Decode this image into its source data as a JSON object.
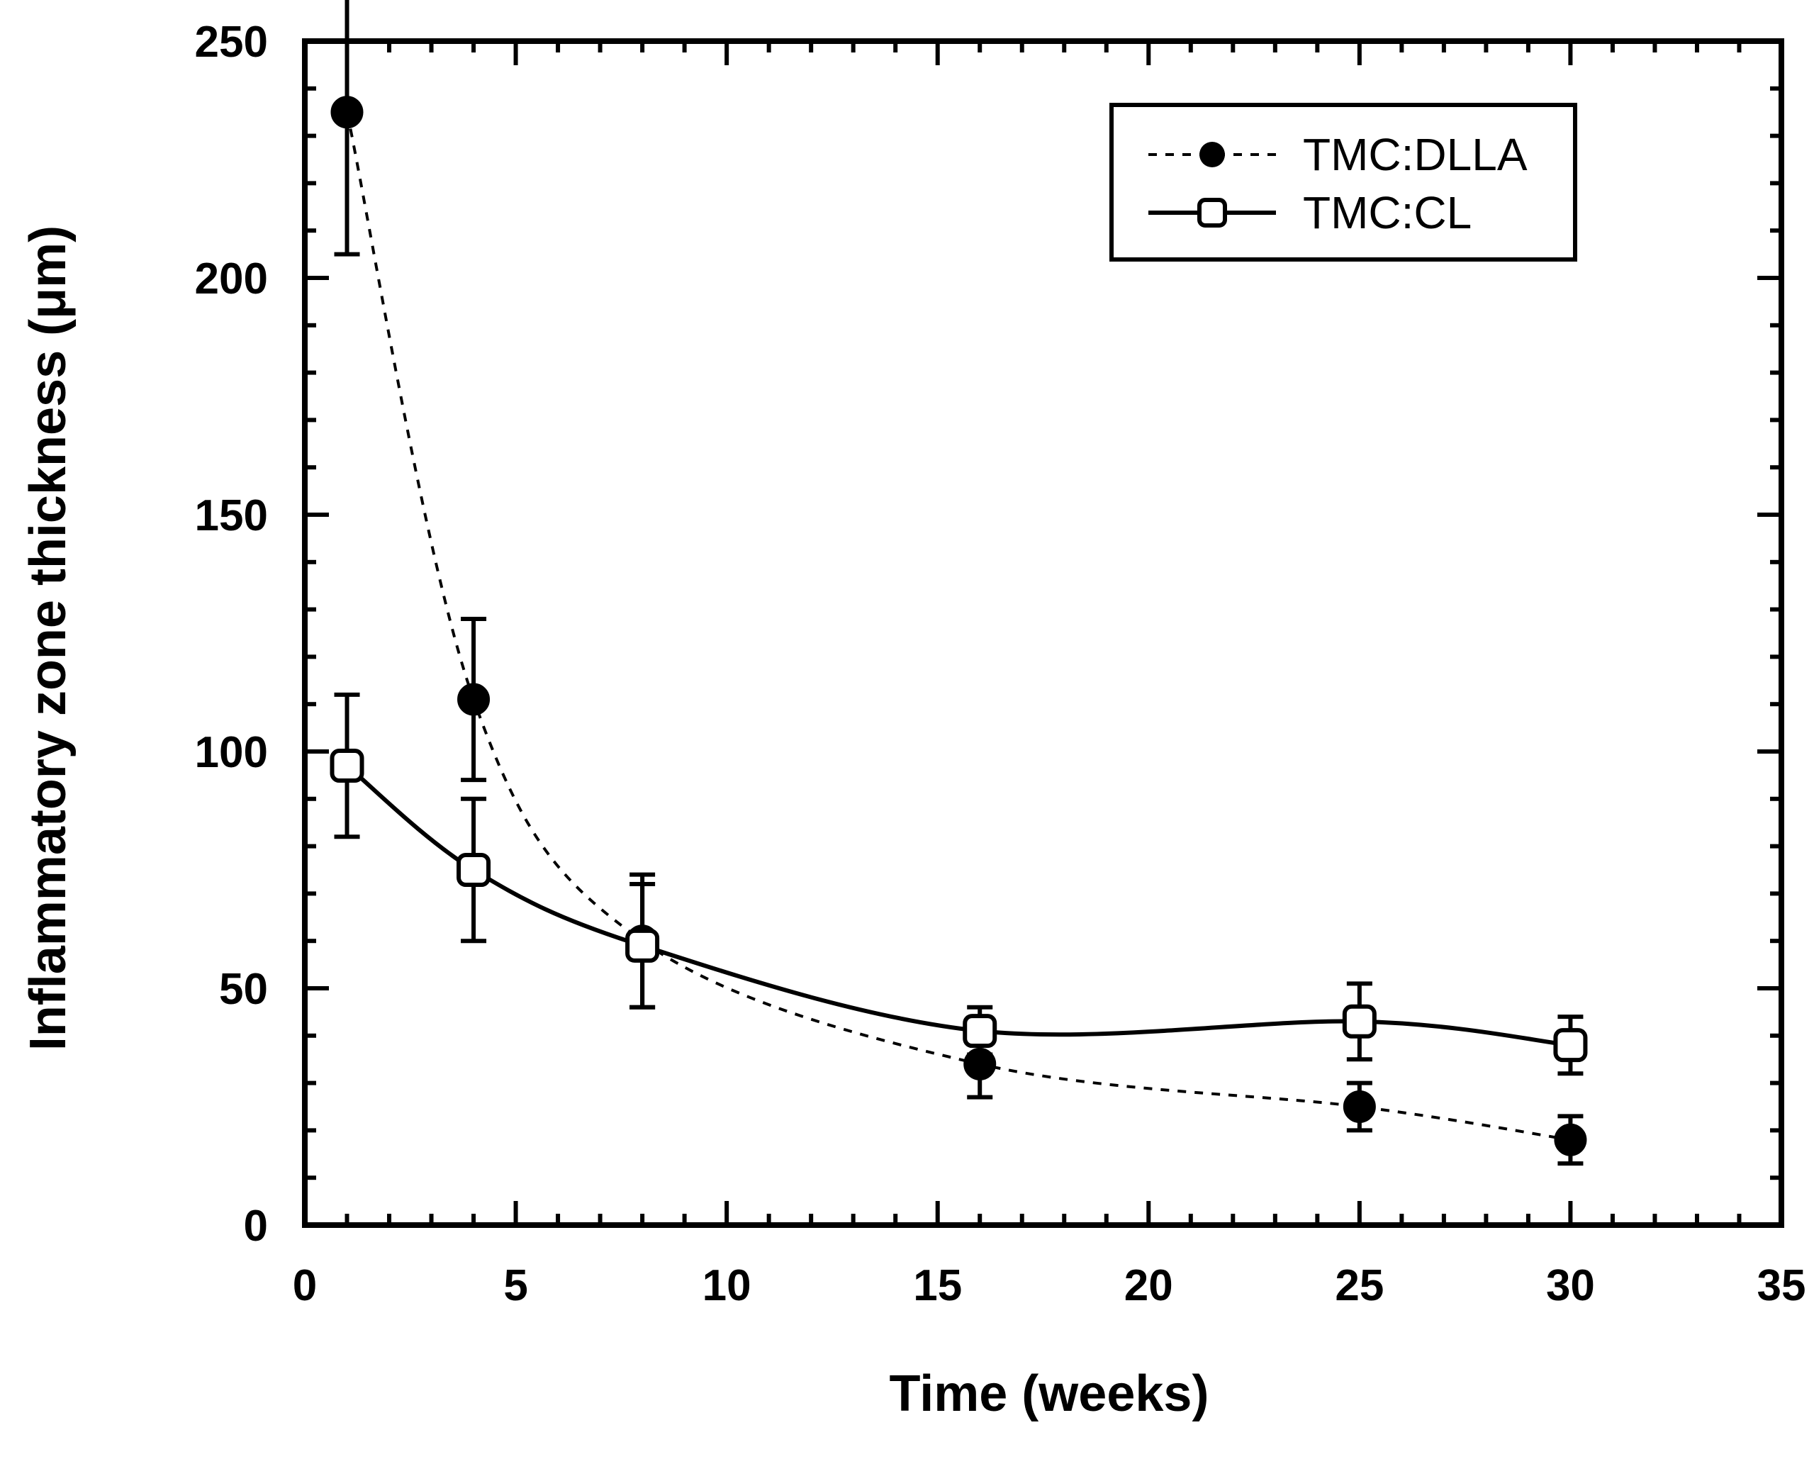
{
  "chart_data": {
    "type": "line",
    "title": "",
    "xlabel": "Time  (weeks)",
    "ylabel": "Inflammatory zone thickness (μm)",
    "xlim": [
      0,
      35
    ],
    "ylim": [
      0,
      250
    ],
    "x_ticks": [
      0,
      5,
      10,
      15,
      20,
      25,
      30,
      35
    ],
    "y_ticks": [
      0,
      50,
      100,
      150,
      200,
      250
    ],
    "x_tick_labels": [
      "0",
      "5",
      "10",
      "15",
      "20",
      "25",
      "30",
      "35"
    ],
    "y_tick_labels": [
      "0",
      "50",
      "100",
      "150",
      "200",
      "250"
    ],
    "grid": false,
    "legend_position": "top-right",
    "series": [
      {
        "name": "TMC:DLLA",
        "line_style": "dashed",
        "marker": "filled-circle",
        "x": [
          1,
          4,
          8,
          16,
          25,
          30
        ],
        "y": [
          235,
          111,
          60,
          34,
          25,
          18
        ],
        "err": [
          30,
          17,
          14,
          7,
          5,
          5
        ],
        "color": "#000000"
      },
      {
        "name": "TMC:CL",
        "line_style": "solid",
        "marker": "open-square",
        "x": [
          1,
          4,
          8,
          16,
          25,
          30
        ],
        "y": [
          97,
          75,
          59,
          41,
          43,
          38
        ],
        "err": [
          15,
          15,
          13,
          5,
          8,
          6
        ],
        "color": "#000000"
      }
    ]
  }
}
